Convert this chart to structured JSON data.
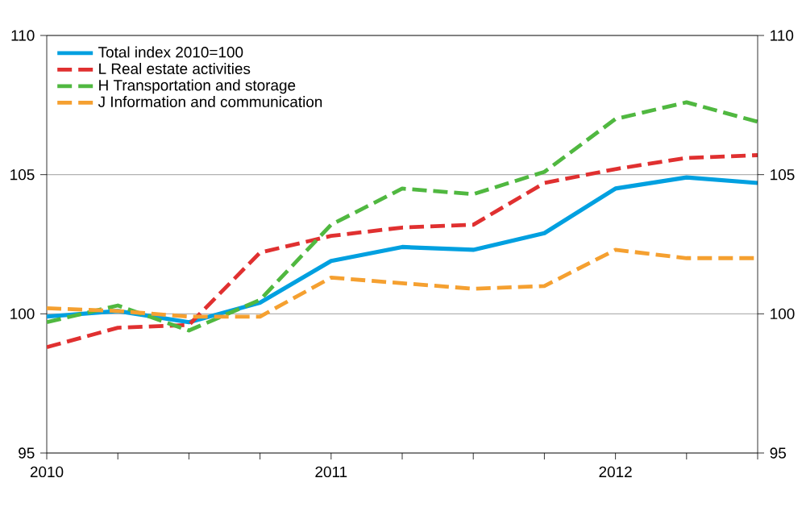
{
  "chart_data": {
    "type": "line",
    "x": [
      2010,
      2010.25,
      2010.5,
      2010.75,
      2011,
      2011.25,
      2011.5,
      2011.75,
      2012,
      2012.25,
      2012.5
    ],
    "xlim": [
      2010,
      2012.5
    ],
    "xticks": [
      2010,
      {
        "value": 2010.25,
        "label": null
      },
      {
        "value": 2010.5,
        "label": null
      },
      {
        "value": 2010.75,
        "label": null
      },
      2011,
      {
        "value": 2011.25,
        "label": null
      },
      {
        "value": 2011.5,
        "label": null
      },
      {
        "value": 2011.75,
        "label": null
      },
      2012,
      {
        "value": 2012.25,
        "label": null
      },
      {
        "value": 2012.5,
        "label": null
      }
    ],
    "ylim": [
      95,
      110
    ],
    "yticks": [
      95,
      100,
      105,
      110
    ],
    "y2lim": [
      95,
      110
    ],
    "y2ticks": [
      95,
      100,
      105,
      110
    ],
    "grid": "y",
    "legend": "top left",
    "marker": "none",
    "series": [
      {
        "name": "Total index 2010=100",
        "color": "#00a0e0",
        "line_style": "solid",
        "values": [
          99.9,
          100.1,
          99.7,
          100.4,
          101.9,
          102.4,
          102.3,
          102.9,
          104.5,
          104.9,
          104.7
        ]
      },
      {
        "name": "L Real estate activities",
        "color": "#e03030",
        "line_style": "dashed",
        "values": [
          98.8,
          99.5,
          99.6,
          102.2,
          102.8,
          103.1,
          103.2,
          104.7,
          105.2,
          105.6,
          105.7
        ]
      },
      {
        "name": "H Transportation and storage",
        "color": "#50b840",
        "line_style": "dashed",
        "values": [
          99.7,
          100.3,
          99.4,
          100.5,
          103.2,
          104.5,
          104.3,
          105.1,
          107.0,
          107.6,
          106.9
        ]
      },
      {
        "name": "J Information and communication",
        "color": "#f5a030",
        "line_style": "dashed",
        "values": [
          100.2,
          100.1,
          99.9,
          99.9,
          101.3,
          101.1,
          100.9,
          101.0,
          102.3,
          102.0,
          102.0
        ]
      }
    ]
  }
}
